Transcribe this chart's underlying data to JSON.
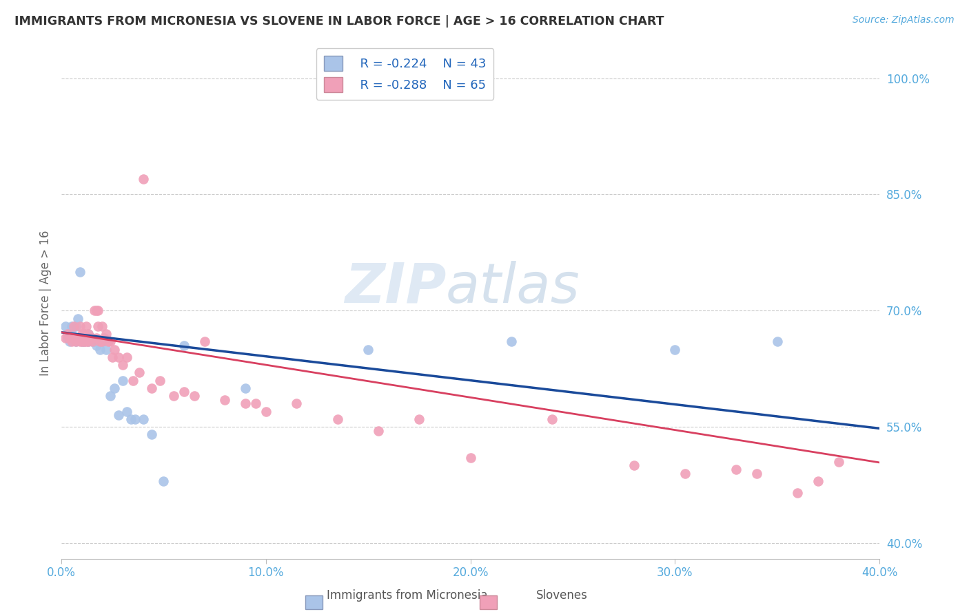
{
  "title": "IMMIGRANTS FROM MICRONESIA VS SLOVENE IN LABOR FORCE | AGE > 16 CORRELATION CHART",
  "source": "Source: ZipAtlas.com",
  "ylabel": "In Labor Force | Age > 16",
  "ytick_labels": [
    "100.0%",
    "85.0%",
    "70.0%",
    "55.0%",
    "40.0%"
  ],
  "ytick_values": [
    1.0,
    0.85,
    0.7,
    0.55,
    0.4
  ],
  "xlim": [
    0.0,
    0.4
  ],
  "ylim": [
    0.38,
    1.04
  ],
  "watermark_zip": "ZIP",
  "watermark_atlas": "atlas",
  "legend_r_blue": "R = -0.224",
  "legend_n_blue": "N = 43",
  "legend_r_pink": "R = -0.288",
  "legend_n_pink": "N = 65",
  "legend_blue_label": "Immigrants from Micronesia",
  "legend_pink_label": "Slovenes",
  "blue_color": "#aac4e8",
  "pink_color": "#f0a0b8",
  "blue_line_color": "#1a4a9a",
  "pink_line_color": "#d84060",
  "title_color": "#333333",
  "axis_label_color": "#55aadd",
  "grid_color": "#cccccc",
  "blue_scatter_x": [
    0.002,
    0.003,
    0.004,
    0.005,
    0.005,
    0.006,
    0.007,
    0.007,
    0.008,
    0.008,
    0.009,
    0.01,
    0.01,
    0.011,
    0.011,
    0.012,
    0.012,
    0.013,
    0.013,
    0.014,
    0.015,
    0.016,
    0.017,
    0.018,
    0.019,
    0.02,
    0.022,
    0.024,
    0.026,
    0.028,
    0.03,
    0.032,
    0.034,
    0.036,
    0.04,
    0.044,
    0.05,
    0.06,
    0.09,
    0.15,
    0.22,
    0.3,
    0.35
  ],
  "blue_scatter_y": [
    0.68,
    0.665,
    0.66,
    0.67,
    0.68,
    0.665,
    0.66,
    0.68,
    0.665,
    0.69,
    0.75,
    0.66,
    0.665,
    0.67,
    0.66,
    0.665,
    0.665,
    0.66,
    0.67,
    0.665,
    0.66,
    0.66,
    0.655,
    0.66,
    0.65,
    0.66,
    0.65,
    0.59,
    0.6,
    0.565,
    0.61,
    0.57,
    0.56,
    0.56,
    0.56,
    0.54,
    0.48,
    0.655,
    0.6,
    0.65,
    0.66,
    0.65,
    0.66
  ],
  "pink_scatter_x": [
    0.002,
    0.003,
    0.004,
    0.005,
    0.006,
    0.006,
    0.007,
    0.007,
    0.008,
    0.009,
    0.009,
    0.01,
    0.01,
    0.011,
    0.011,
    0.012,
    0.012,
    0.013,
    0.013,
    0.014,
    0.015,
    0.015,
    0.016,
    0.017,
    0.017,
    0.018,
    0.018,
    0.019,
    0.02,
    0.02,
    0.021,
    0.022,
    0.023,
    0.024,
    0.025,
    0.026,
    0.028,
    0.03,
    0.032,
    0.035,
    0.038,
    0.04,
    0.044,
    0.048,
    0.055,
    0.06,
    0.065,
    0.07,
    0.08,
    0.09,
    0.095,
    0.1,
    0.115,
    0.135,
    0.155,
    0.175,
    0.2,
    0.24,
    0.28,
    0.305,
    0.33,
    0.34,
    0.36,
    0.37,
    0.38
  ],
  "pink_scatter_y": [
    0.665,
    0.67,
    0.665,
    0.66,
    0.665,
    0.68,
    0.66,
    0.665,
    0.665,
    0.66,
    0.68,
    0.66,
    0.67,
    0.66,
    0.67,
    0.66,
    0.68,
    0.66,
    0.67,
    0.665,
    0.66,
    0.665,
    0.7,
    0.7,
    0.665,
    0.68,
    0.7,
    0.66,
    0.66,
    0.68,
    0.665,
    0.67,
    0.66,
    0.66,
    0.64,
    0.65,
    0.64,
    0.63,
    0.64,
    0.61,
    0.62,
    0.87,
    0.6,
    0.61,
    0.59,
    0.595,
    0.59,
    0.66,
    0.585,
    0.58,
    0.58,
    0.57,
    0.58,
    0.56,
    0.545,
    0.56,
    0.51,
    0.56,
    0.5,
    0.49,
    0.495,
    0.49,
    0.465,
    0.48,
    0.505
  ],
  "blue_line_x0": 0.0,
  "blue_line_y0": 0.672,
  "blue_line_x1": 0.4,
  "blue_line_y1": 0.548,
  "pink_line_x0": 0.0,
  "pink_line_y0": 0.672,
  "pink_line_x1": 0.4,
  "pink_line_y1": 0.504
}
